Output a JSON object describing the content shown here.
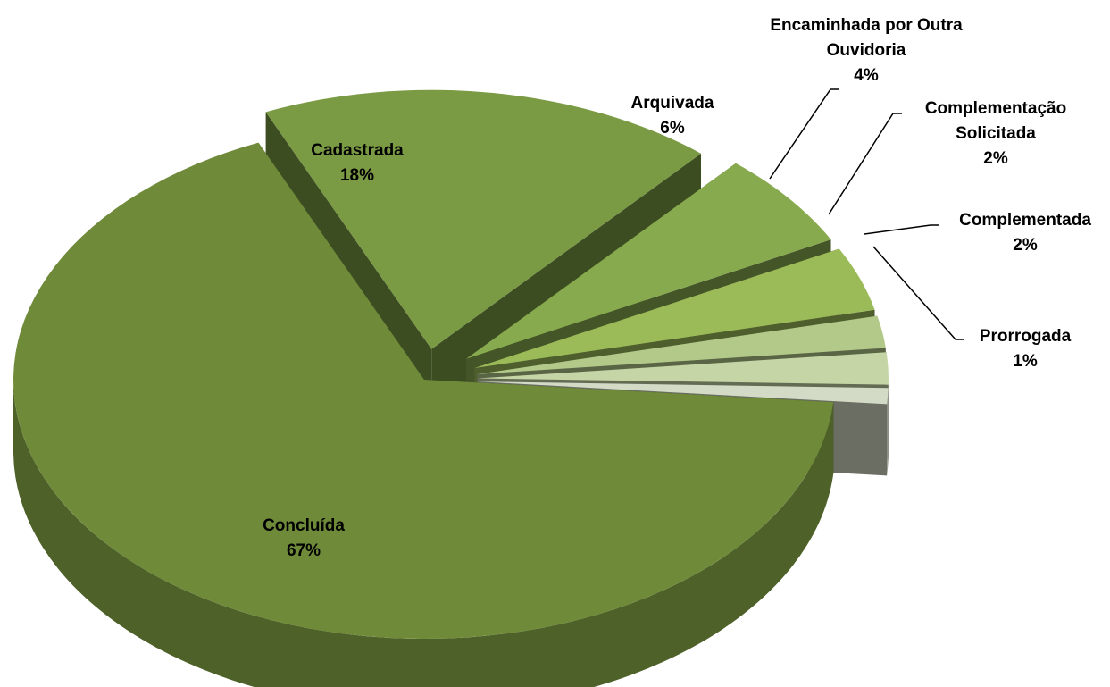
{
  "chart_data": {
    "type": "pie",
    "categories": [
      "Concluída",
      "Cadastrada",
      "Arquivada",
      "Encaminhada por Outra Ouvidoria",
      "Complementação Solicitada",
      "Complementada",
      "Prorrogada"
    ],
    "values": [
      67,
      18,
      6,
      4,
      2,
      2,
      1
    ],
    "value_labels": [
      "67%",
      "18%",
      "6%",
      "4%",
      "2%",
      "2%",
      "1%"
    ],
    "colors": [
      "#6f8b3a",
      "#7a9a44",
      "#88aa4e",
      "#9bbb59",
      "#b3c98a",
      "#c5d5a6",
      "#d3dbc6"
    ]
  }
}
